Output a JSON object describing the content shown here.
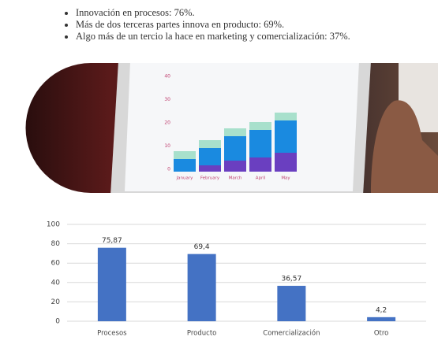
{
  "bullets": [
    "Innovación en procesos: 76%.",
    "Más de dos terceras partes innova en producto: 69%.",
    "Algo más de un tercio la hace en marketing y comercialización: 37%."
  ],
  "illustration": {
    "yticks": [
      0,
      10,
      20,
      30,
      40
    ],
    "categories": [
      "January",
      "February",
      "March",
      "April",
      "May"
    ]
  },
  "chart_data": {
    "type": "bar",
    "categories": [
      "Procesos",
      "Producto",
      "Comercialización",
      "Otro"
    ],
    "values": [
      75.87,
      69.4,
      36.57,
      4.2
    ],
    "value_labels": [
      "75,87",
      "69,4",
      "36,57",
      "4,2"
    ],
    "color": "#4472c4",
    "ylim": [
      0,
      100
    ],
    "yticks": [
      0,
      20,
      40,
      60,
      80,
      100
    ],
    "grid": true
  }
}
